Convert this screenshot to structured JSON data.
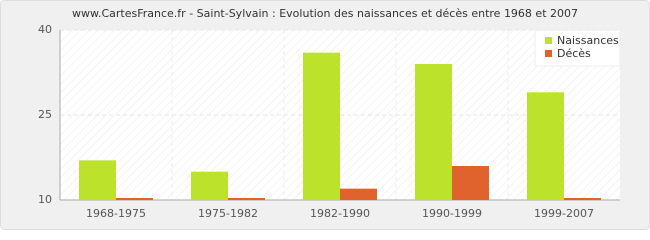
{
  "chart_data": {
    "type": "bar",
    "title": "www.CartesFrance.fr - Saint-Sylvain : Evolution des naissances et décès entre 1968 et 2007",
    "categories": [
      "1968-1975",
      "1975-1982",
      "1982-1990",
      "1990-1999",
      "1999-2007"
    ],
    "series": [
      {
        "name": "Naissances",
        "color": "#bde22c",
        "values": [
          17,
          15,
          36,
          34,
          29
        ]
      },
      {
        "name": "Décès",
        "color": "#e0622c",
        "values": [
          10,
          10,
          12,
          16,
          10
        ]
      }
    ],
    "ylim": [
      10,
      40
    ],
    "yticks": [
      10,
      25,
      40
    ],
    "grid": true,
    "legend": "top-right"
  }
}
